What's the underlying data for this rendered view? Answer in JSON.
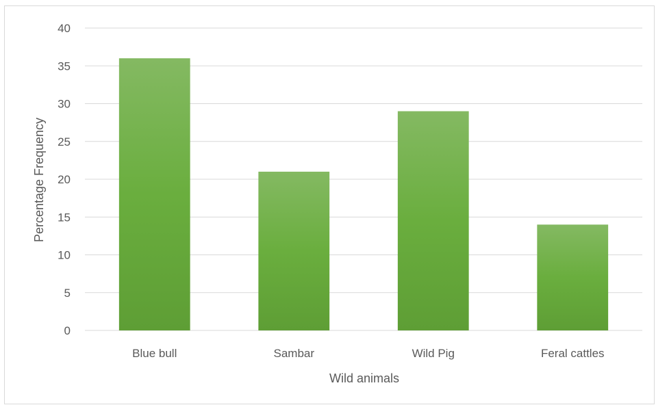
{
  "chart_data": {
    "type": "bar",
    "title": "",
    "xlabel": "Wild animals",
    "ylabel": "Percentage Frequency",
    "categories": [
      "Blue bull",
      "Sambar",
      "Wild Pig",
      "Feral cattles"
    ],
    "values": [
      36,
      21,
      29,
      14
    ],
    "ylim": [
      0,
      40
    ],
    "yticks": [
      "0",
      "5",
      "10",
      "15",
      "20",
      "25",
      "30",
      "35",
      "40"
    ],
    "grid": true,
    "legend": "none",
    "colors": {
      "bar_top": "#84b962",
      "bar_mid": "#6aae3e",
      "bar_bottom": "#5e9e35",
      "grid": "#d9d9d9",
      "text": "#595959"
    }
  }
}
